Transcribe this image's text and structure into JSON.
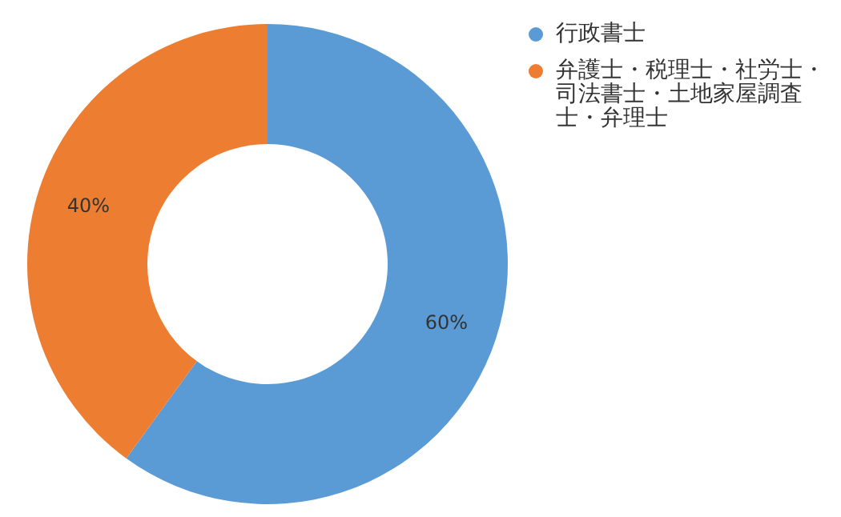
{
  "chart_data": {
    "type": "donut",
    "categories": [
      "行政書士",
      "弁護士・税理士・社労士・司法書士・土地家屋調査士・弁理士"
    ],
    "values": [
      60,
      40
    ],
    "colors": [
      "#5b9bd5",
      "#ed7d31"
    ],
    "value_labels": [
      "60%",
      "40%"
    ],
    "legend": "top right"
  }
}
